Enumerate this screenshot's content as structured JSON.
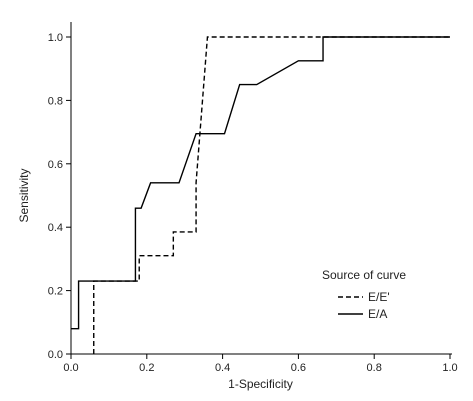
{
  "chart_data": {
    "type": "line",
    "title": "",
    "xlabel": "1-Specificity",
    "ylabel": "Sensitivity",
    "xlim": [
      0,
      1
    ],
    "ylim": [
      0,
      1
    ],
    "x_ticks": [
      "0.0",
      "0.2",
      "0.4",
      "0.6",
      "0.8",
      "1.0"
    ],
    "y_ticks": [
      "0.0",
      "0.2",
      "0.4",
      "0.6",
      "0.8",
      "1.0"
    ],
    "grid": false,
    "legend": {
      "title": "Source of curve",
      "placement": "bottom-right",
      "entries": [
        {
          "label": "E/E'",
          "style": "dashed"
        },
        {
          "label": "E/A",
          "style": "solid"
        }
      ]
    },
    "series": [
      {
        "name": "E/E'",
        "style": "dashed",
        "color": "#000000",
        "points": [
          [
            0.06,
            0.0
          ],
          [
            0.06,
            0.23
          ],
          [
            0.18,
            0.23
          ],
          [
            0.18,
            0.31
          ],
          [
            0.27,
            0.31
          ],
          [
            0.27,
            0.385
          ],
          [
            0.33,
            0.385
          ],
          [
            0.33,
            0.54
          ],
          [
            0.36,
            1.0
          ],
          [
            1.0,
            1.0
          ]
        ]
      },
      {
        "name": "E/A",
        "style": "solid",
        "color": "#000000",
        "points": [
          [
            0.0,
            0.08
          ],
          [
            0.02,
            0.08
          ],
          [
            0.02,
            0.23
          ],
          [
            0.17,
            0.23
          ],
          [
            0.17,
            0.46
          ],
          [
            0.185,
            0.46
          ],
          [
            0.21,
            0.54
          ],
          [
            0.285,
            0.54
          ],
          [
            0.33,
            0.695
          ],
          [
            0.405,
            0.695
          ],
          [
            0.445,
            0.85
          ],
          [
            0.49,
            0.85
          ],
          [
            0.6,
            0.925
          ],
          [
            0.665,
            0.925
          ],
          [
            0.665,
            1.0
          ],
          [
            1.0,
            1.0
          ]
        ]
      }
    ]
  }
}
